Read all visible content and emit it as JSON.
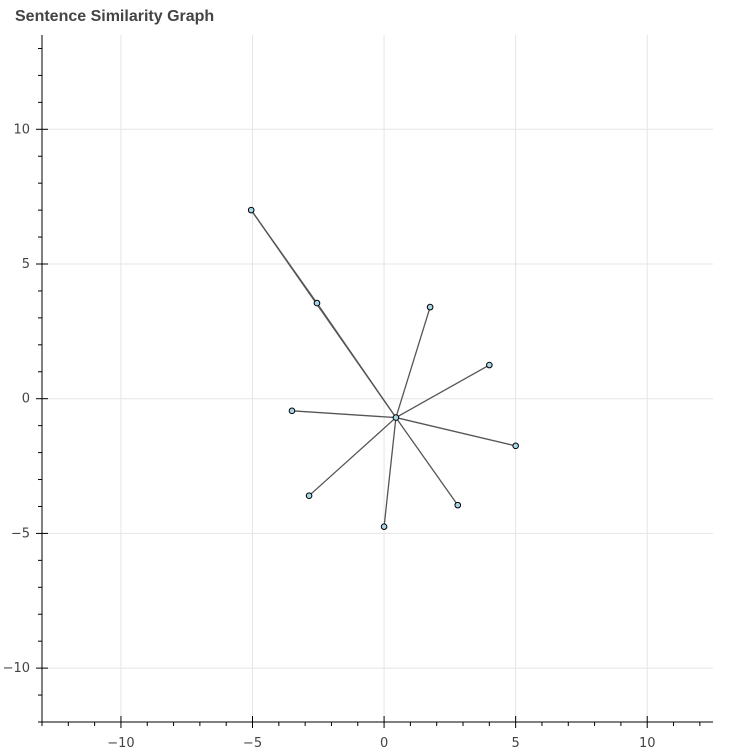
{
  "chart_data": {
    "type": "network",
    "title": "Sentence Similarity Graph",
    "xlabel": "",
    "ylabel": "",
    "xlim": [
      -13,
      12.5
    ],
    "ylim": [
      -12,
      13.5
    ],
    "x_ticks": [
      -10,
      -5,
      0,
      5,
      10
    ],
    "y_ticks": [
      -10,
      -5,
      0,
      5,
      10
    ],
    "x_tick_labels": [
      "−10",
      "−5",
      "0",
      "5",
      "10"
    ],
    "y_tick_labels": [
      "−10",
      "−5",
      "0",
      "5",
      "10"
    ],
    "grid": true,
    "nodes": [
      {
        "id": "center",
        "x": 0.45,
        "y": -0.7
      },
      {
        "id": "n1",
        "x": -5.05,
        "y": 7.0
      },
      {
        "id": "n2",
        "x": -2.55,
        "y": 3.55
      },
      {
        "id": "n3",
        "x": 1.75,
        "y": 3.4
      },
      {
        "id": "n4",
        "x": 4.0,
        "y": 1.25
      },
      {
        "id": "n5",
        "x": 5.0,
        "y": -1.75
      },
      {
        "id": "n6",
        "x": 2.8,
        "y": -3.95
      },
      {
        "id": "n7",
        "x": 0.0,
        "y": -4.75
      },
      {
        "id": "n8",
        "x": -2.85,
        "y": -3.6
      },
      {
        "id": "n9",
        "x": -3.5,
        "y": -0.45
      }
    ],
    "edges": [
      [
        "center",
        "n1"
      ],
      [
        "center",
        "n2"
      ],
      [
        "center",
        "n3"
      ],
      [
        "center",
        "n4"
      ],
      [
        "center",
        "n5"
      ],
      [
        "center",
        "n6"
      ],
      [
        "center",
        "n7"
      ],
      [
        "center",
        "n8"
      ],
      [
        "center",
        "n9"
      ],
      [
        "n1",
        "n2"
      ]
    ]
  }
}
